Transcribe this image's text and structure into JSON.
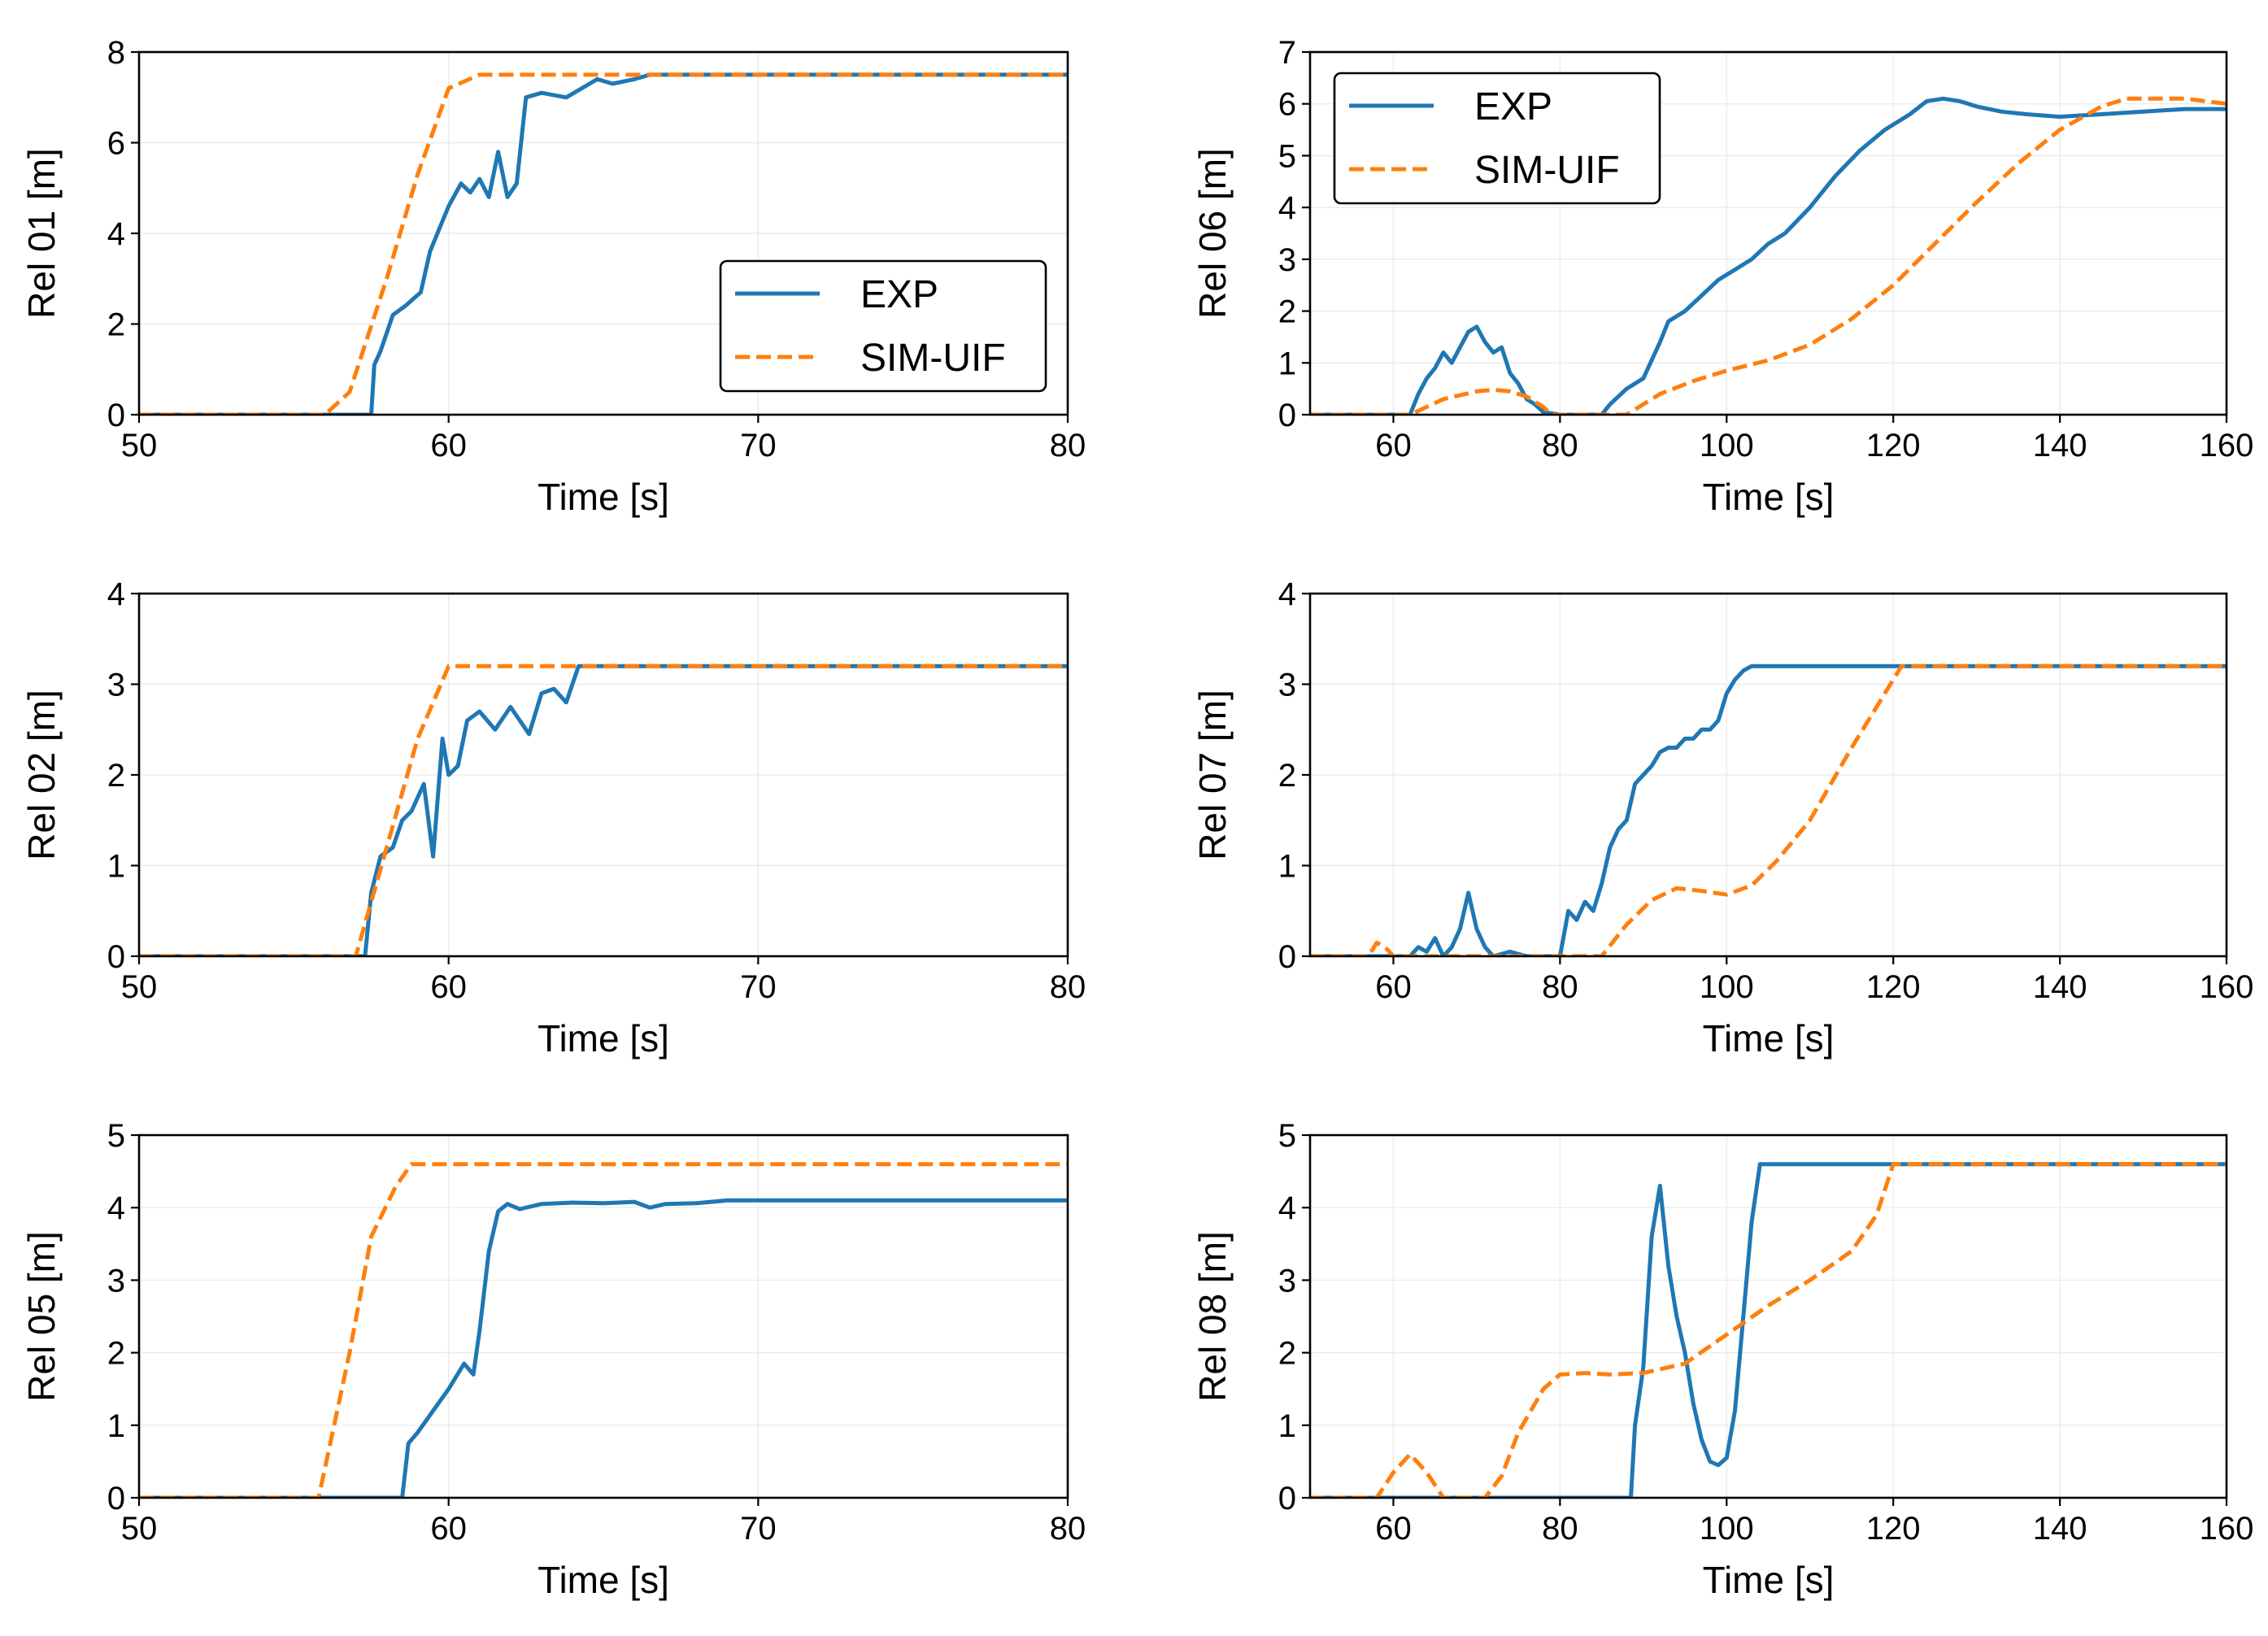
{
  "colors": {
    "exp": "#1f77b4",
    "sim": "#ff7f0e",
    "frame": "#000000",
    "grid": "#ebebeb"
  },
  "chart_data": [
    {
      "id": "rel01",
      "type": "line",
      "title": "",
      "xlabel": "Time [s]",
      "ylabel": "Rel 01 [m]",
      "xlim": [
        50,
        80
      ],
      "ylim": [
        0,
        8
      ],
      "xticks": [
        50,
        60,
        70,
        80
      ],
      "yticks": [
        0,
        2,
        4,
        6,
        8
      ],
      "grid": true,
      "legend": "lower-right",
      "series": [
        {
          "name": "EXP",
          "style": "solid",
          "x": [
            50,
            57.5,
            57.6,
            57.8,
            58.2,
            58.6,
            59.1,
            59.4,
            59.7,
            60.0,
            60.4,
            60.7,
            61.0,
            61.3,
            61.6,
            61.9,
            62.2,
            62.5,
            63.0,
            63.8,
            64.3,
            64.8,
            65.3,
            66.0,
            66.5,
            70,
            75,
            80
          ],
          "y": [
            0,
            0,
            1.1,
            1.4,
            2.2,
            2.4,
            2.7,
            3.6,
            4.1,
            4.6,
            5.1,
            4.9,
            5.2,
            4.8,
            5.8,
            4.8,
            5.1,
            7.0,
            7.1,
            7.0,
            7.2,
            7.4,
            7.3,
            7.4,
            7.5,
            7.5,
            7.5,
            7.5
          ]
        },
        {
          "name": "SIM-UIF",
          "style": "dashed",
          "x": [
            50,
            56.0,
            56.8,
            58.0,
            59.0,
            60.0,
            61.0,
            62.0,
            70,
            80
          ],
          "y": [
            0,
            0,
            0.5,
            3.0,
            5.3,
            7.2,
            7.5,
            7.5,
            7.5,
            7.5
          ]
        }
      ]
    },
    {
      "id": "rel06",
      "type": "line",
      "title": "",
      "xlabel": "Time [s]",
      "ylabel": "Rel 06 [m]",
      "xlim": [
        50,
        160
      ],
      "ylim": [
        0,
        7
      ],
      "xticks": [
        60,
        80,
        100,
        120,
        140,
        160
      ],
      "yticks": [
        0,
        1,
        2,
        3,
        4,
        5,
        6,
        7
      ],
      "grid": true,
      "legend": "upper-left",
      "series": [
        {
          "name": "EXP",
          "style": "solid",
          "x": [
            50,
            62,
            63,
            64,
            65,
            66,
            67,
            68,
            69,
            70,
            71,
            72,
            73,
            74,
            75,
            76,
            77,
            78,
            80,
            85,
            86,
            88,
            90,
            92,
            93,
            95,
            97,
            99,
            101,
            103,
            105,
            107,
            110,
            113,
            116,
            119,
            122,
            124,
            126,
            128,
            130,
            133,
            136,
            140,
            145,
            150,
            155,
            160
          ],
          "y": [
            0,
            0,
            0.4,
            0.7,
            0.9,
            1.2,
            1.0,
            1.3,
            1.6,
            1.7,
            1.4,
            1.2,
            1.3,
            0.8,
            0.6,
            0.3,
            0.2,
            0.05,
            0,
            0,
            0.2,
            0.5,
            0.7,
            1.4,
            1.8,
            2.0,
            2.3,
            2.6,
            2.8,
            3.0,
            3.3,
            3.5,
            4.0,
            4.6,
            5.1,
            5.5,
            5.8,
            6.05,
            6.1,
            6.05,
            5.95,
            5.85,
            5.8,
            5.75,
            5.8,
            5.85,
            5.9,
            5.9
          ]
        },
        {
          "name": "SIM-UIF",
          "style": "dashed",
          "x": [
            50,
            62,
            66,
            70,
            72,
            74,
            76,
            78,
            79,
            88,
            92,
            96,
            100,
            105,
            110,
            115,
            120,
            125,
            130,
            135,
            140,
            145,
            148,
            155,
            160
          ],
          "y": [
            0,
            0,
            0.3,
            0.45,
            0.48,
            0.45,
            0.35,
            0.15,
            0,
            0,
            0.4,
            0.65,
            0.85,
            1.05,
            1.35,
            1.85,
            2.5,
            3.3,
            4.1,
            4.85,
            5.5,
            5.95,
            6.1,
            6.1,
            6.0
          ]
        }
      ]
    },
    {
      "id": "rel02",
      "type": "line",
      "title": "",
      "xlabel": "Time [s]",
      "ylabel": "Rel 02 [m]",
      "xlim": [
        50,
        80
      ],
      "ylim": [
        0,
        4
      ],
      "xticks": [
        50,
        60,
        70,
        80
      ],
      "yticks": [
        0,
        1,
        2,
        3,
        4
      ],
      "grid": true,
      "legend": "",
      "series": [
        {
          "name": "EXP",
          "style": "solid",
          "x": [
            50,
            57.3,
            57.5,
            57.8,
            58.2,
            58.5,
            58.8,
            59.2,
            59.5,
            59.8,
            60.0,
            60.3,
            60.6,
            61.0,
            61.5,
            62.0,
            62.6,
            63.0,
            63.4,
            63.8,
            64.2,
            64.6,
            65.0,
            66,
            70,
            75,
            80
          ],
          "y": [
            0,
            0,
            0.7,
            1.1,
            1.2,
            1.5,
            1.6,
            1.9,
            1.1,
            2.4,
            2.0,
            2.1,
            2.6,
            2.7,
            2.5,
            2.75,
            2.45,
            2.9,
            2.95,
            2.8,
            3.2,
            3.2,
            3.2,
            3.2,
            3.2,
            3.2,
            3.2
          ]
        },
        {
          "name": "SIM-UIF",
          "style": "dashed",
          "x": [
            50,
            57.0,
            58.0,
            59.0,
            60.0,
            70,
            80
          ],
          "y": [
            0,
            0,
            1.2,
            2.4,
            3.2,
            3.2,
            3.2
          ]
        }
      ]
    },
    {
      "id": "rel07",
      "type": "line",
      "title": "",
      "xlabel": "Time [s]",
      "ylabel": "Rel 07 [m]",
      "xlim": [
        50,
        160
      ],
      "ylim": [
        0,
        4
      ],
      "xticks": [
        60,
        80,
        100,
        120,
        140,
        160
      ],
      "yticks": [
        0,
        1,
        2,
        3,
        4
      ],
      "grid": true,
      "legend": "",
      "series": [
        {
          "name": "EXP",
          "style": "solid",
          "x": [
            50,
            62,
            63,
            64,
            65,
            66,
            67,
            68,
            69,
            70,
            71,
            72,
            74,
            76,
            80,
            81,
            82,
            83,
            84,
            85,
            86,
            87,
            88,
            89,
            90,
            91,
            92,
            93,
            94,
            95,
            96,
            97,
            98,
            99,
            100,
            101,
            102,
            103,
            104,
            105,
            110,
            120,
            160
          ],
          "y": [
            0,
            0,
            0.1,
            0.05,
            0.2,
            0,
            0.1,
            0.3,
            0.7,
            0.3,
            0.1,
            0,
            0.05,
            0,
            0,
            0.5,
            0.4,
            0.6,
            0.5,
            0.8,
            1.2,
            1.4,
            1.5,
            1.9,
            2.0,
            2.1,
            2.25,
            2.3,
            2.3,
            2.4,
            2.4,
            2.5,
            2.5,
            2.6,
            2.9,
            3.05,
            3.15,
            3.2,
            3.2,
            3.2,
            3.2,
            3.2,
            3.2
          ]
        },
        {
          "name": "SIM-UIF",
          "style": "dashed",
          "x": [
            50,
            57,
            58,
            59,
            60,
            61,
            85,
            88,
            91,
            94,
            97,
            100,
            103,
            106,
            110,
            115,
            121,
            130,
            160
          ],
          "y": [
            0,
            0,
            0.15,
            0.1,
            0,
            0,
            0,
            0.35,
            0.62,
            0.75,
            0.72,
            0.68,
            0.78,
            1.05,
            1.5,
            2.3,
            3.2,
            3.2,
            3.2
          ]
        }
      ]
    },
    {
      "id": "rel05",
      "type": "line",
      "title": "",
      "xlabel": "Time [s]",
      "ylabel": "Rel 05 [m]",
      "xlim": [
        50,
        80
      ],
      "ylim": [
        0,
        5
      ],
      "xticks": [
        50,
        60,
        70,
        80
      ],
      "yticks": [
        0,
        1,
        2,
        3,
        4,
        5
      ],
      "grid": true,
      "legend": "",
      "series": [
        {
          "name": "EXP",
          "style": "solid",
          "x": [
            50,
            58.5,
            58.7,
            59.0,
            59.5,
            60.0,
            60.5,
            60.8,
            61.0,
            61.3,
            61.6,
            61.9,
            62.3,
            63.0,
            64.0,
            65.0,
            66.0,
            66.5,
            67.0,
            68.0,
            69.0,
            70,
            75,
            80
          ],
          "y": [
            0,
            0,
            0.75,
            0.9,
            1.2,
            1.5,
            1.85,
            1.7,
            2.3,
            3.4,
            3.95,
            4.05,
            3.98,
            4.05,
            4.07,
            4.06,
            4.08,
            4.0,
            4.05,
            4.06,
            4.1,
            4.1,
            4.1,
            4.1
          ]
        },
        {
          "name": "SIM-UIF",
          "style": "dashed",
          "x": [
            50,
            55.8,
            56.8,
            57.5,
            58.3,
            58.8,
            60,
            70,
            80
          ],
          "y": [
            0,
            0,
            2.0,
            3.6,
            4.3,
            4.6,
            4.6,
            4.6,
            4.6
          ]
        }
      ]
    },
    {
      "id": "rel08",
      "type": "line",
      "title": "",
      "xlabel": "Time [s]",
      "ylabel": "Rel 08 [m]",
      "xlim": [
        50,
        160
      ],
      "ylim": [
        0,
        5
      ],
      "xticks": [
        60,
        80,
        100,
        120,
        140,
        160
      ],
      "yticks": [
        0,
        1,
        2,
        3,
        4,
        5
      ],
      "grid": true,
      "legend": "",
      "series": [
        {
          "name": "EXP",
          "style": "solid",
          "x": [
            50,
            88.5,
            89,
            90,
            91,
            92,
            93,
            94,
            95,
            96,
            97,
            98,
            99,
            100,
            101,
            102,
            103,
            104,
            105,
            110,
            120,
            160
          ],
          "y": [
            0,
            0,
            1.0,
            1.8,
            3.6,
            4.3,
            3.2,
            2.5,
            2.0,
            1.3,
            0.8,
            0.5,
            0.45,
            0.55,
            1.2,
            2.5,
            3.8,
            4.6,
            4.6,
            4.6,
            4.6,
            4.6
          ]
        },
        {
          "name": "SIM-UIF",
          "style": "dashed",
          "x": [
            50,
            58,
            60,
            62,
            64,
            66,
            71,
            73,
            75,
            78,
            80,
            83,
            86,
            90,
            95,
            100,
            105,
            110,
            115,
            118,
            120,
            125,
            160
          ],
          "y": [
            0,
            0,
            0.35,
            0.6,
            0.35,
            0,
            0,
            0.3,
            0.9,
            1.5,
            1.7,
            1.72,
            1.7,
            1.72,
            1.85,
            2.25,
            2.65,
            3.0,
            3.4,
            3.9,
            4.6,
            4.6,
            4.6
          ]
        }
      ]
    }
  ]
}
